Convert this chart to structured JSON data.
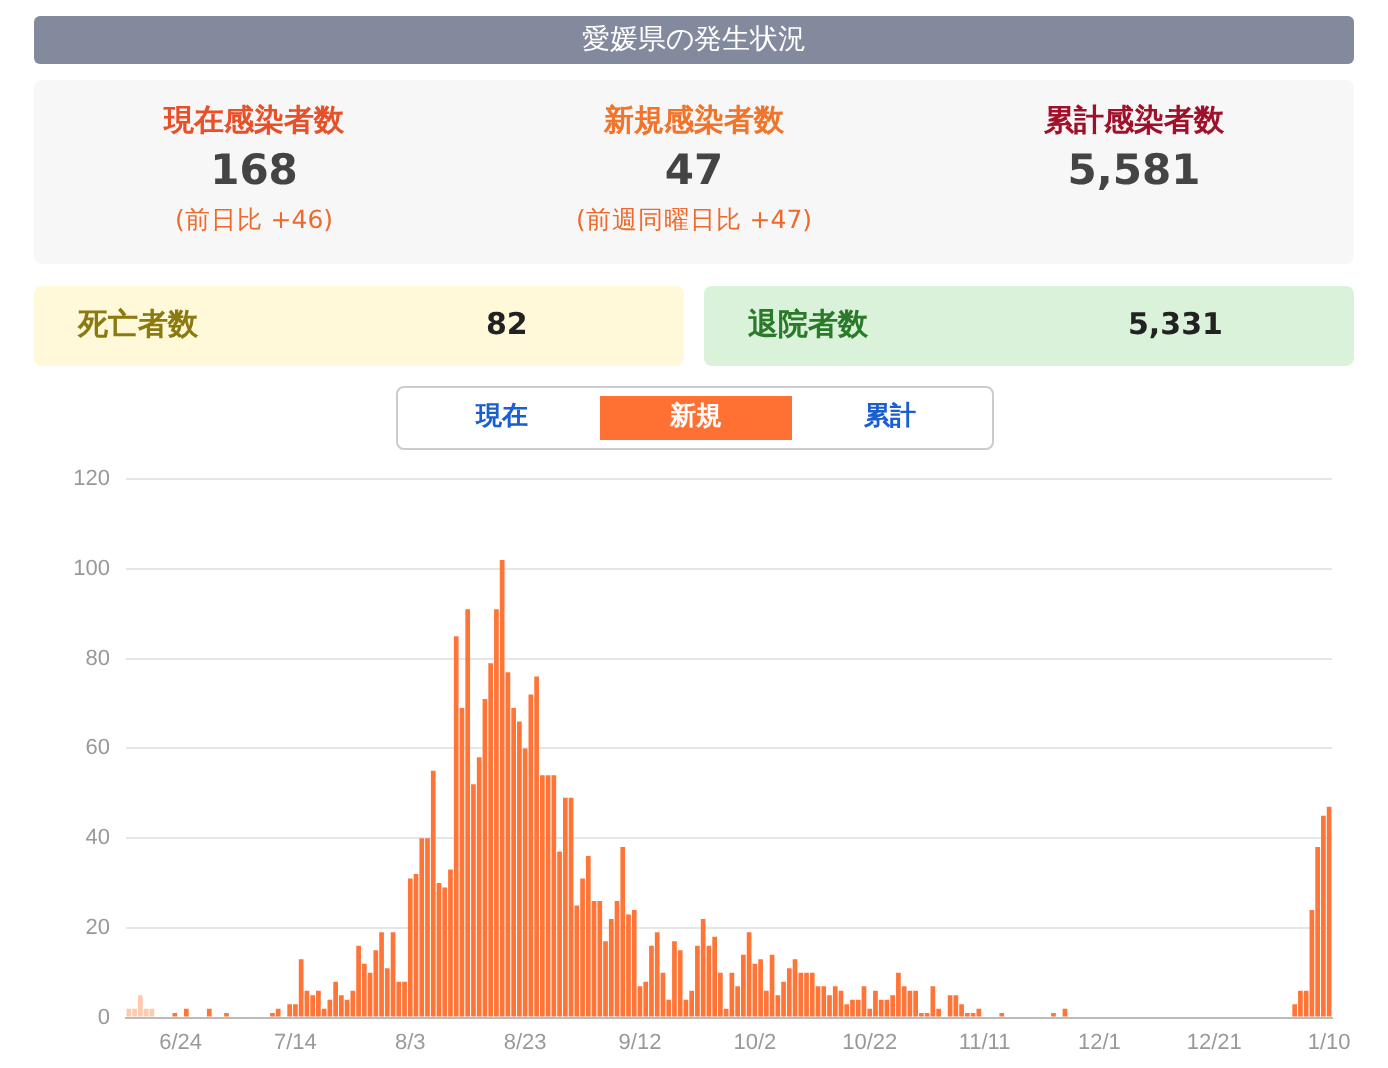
{
  "chart_data": [
    {
      "type": "other",
      "title": "愛媛県の発生状況",
      "annotations": [
        "現在感染者数",
        "168",
        "(前日比 +46)",
        "新規感染者数",
        "47",
        "(前週同曜日比 +47)",
        "累計感染者数",
        "5,581",
        "死亡者数",
        "82",
        "退院者数",
        "5,331",
        "現在",
        "新規",
        "累計"
      ]
    },
    {
      "type": "bar",
      "categories": [
        null,
        null,
        null,
        null,
        null,
        null,
        null,
        null,
        null,
        "6/24",
        null,
        null,
        null,
        null,
        null,
        null,
        null,
        null,
        null,
        null,
        null,
        null,
        null,
        null,
        null,
        null,
        null,
        null,
        null,
        "7/14",
        null,
        null,
        null,
        null,
        null,
        null,
        null,
        null,
        null,
        null,
        null,
        null,
        null,
        null,
        null,
        null,
        null,
        null,
        null,
        "8/3",
        null,
        null,
        null,
        null,
        null,
        null,
        null,
        null,
        null,
        null,
        null,
        null,
        null,
        null,
        null,
        null,
        null,
        null,
        null,
        "8/23",
        null,
        null,
        null,
        null,
        null,
        null,
        null,
        null,
        null,
        null,
        null,
        null,
        null,
        null,
        null,
        null,
        null,
        null,
        null,
        "9/12",
        null,
        null,
        null,
        null,
        null,
        null,
        null,
        null,
        null,
        null,
        null,
        null,
        null,
        null,
        null,
        null,
        null,
        null,
        null,
        "10/2",
        null,
        null,
        null,
        null,
        null,
        null,
        null,
        null,
        null,
        null,
        null,
        null,
        null,
        null,
        null,
        null,
        null,
        null,
        null,
        "10/22",
        null,
        null,
        null,
        null,
        null,
        null,
        null,
        null,
        null,
        null,
        null,
        null,
        null,
        null,
        null,
        null,
        null,
        null,
        null,
        "11/11",
        null,
        null,
        null,
        null,
        null,
        null,
        null,
        null,
        null,
        null,
        null,
        null,
        null,
        null,
        null,
        null,
        null,
        null,
        null,
        "12/1",
        null,
        null,
        null,
        null,
        null,
        null,
        null,
        null,
        null,
        null,
        null,
        null,
        null,
        null,
        null,
        null,
        null,
        null,
        null,
        "12/21",
        null,
        null,
        null,
        null,
        null,
        null,
        null,
        null,
        null,
        null,
        null,
        null,
        null,
        null,
        null,
        null,
        null,
        null,
        null,
        "1/10"
      ],
      "values": [
        2,
        2,
        5,
        2,
        2,
        0,
        0,
        0,
        1,
        0,
        2,
        0,
        0,
        0,
        2,
        0,
        0,
        1,
        0,
        0,
        0,
        0,
        0,
        0,
        0,
        1,
        2,
        0,
        3,
        3,
        13,
        6,
        5,
        6,
        2,
        4,
        8,
        5,
        4,
        6,
        16,
        12,
        10,
        15,
        19,
        11,
        19,
        8,
        8,
        31,
        32,
        40,
        40,
        55,
        30,
        29,
        33,
        85,
        69,
        91,
        52,
        58,
        71,
        79,
        91,
        102,
        77,
        69,
        66,
        60,
        72,
        76,
        54,
        54,
        54,
        37,
        49,
        49,
        25,
        31,
        36,
        26,
        26,
        17,
        22,
        26,
        38,
        23,
        24,
        7,
        8,
        16,
        19,
        10,
        4,
        17,
        15,
        4,
        6,
        16,
        22,
        16,
        18,
        10,
        2,
        10,
        7,
        14,
        19,
        12,
        13,
        6,
        14,
        5,
        8,
        11,
        13,
        10,
        10,
        10,
        7,
        7,
        5,
        7,
        6,
        3,
        4,
        4,
        7,
        2,
        6,
        4,
        4,
        5,
        10,
        7,
        6,
        6,
        1,
        1,
        7,
        2,
        0,
        5,
        5,
        3,
        1,
        1,
        2,
        0,
        0,
        0,
        1,
        0,
        0,
        0,
        0,
        0,
        0,
        0,
        0,
        1,
        0,
        2,
        0,
        0,
        0,
        0,
        0,
        0,
        0,
        0,
        0,
        0,
        0,
        0,
        0,
        0,
        0,
        0,
        0,
        0,
        0,
        0,
        0,
        0,
        0,
        0,
        0,
        0,
        0,
        0,
        0,
        0,
        0,
        0,
        0,
        0,
        0,
        0,
        0,
        0,
        0,
        3,
        6,
        6,
        24,
        38,
        45,
        47
      ],
      "colors": [
        "#ffc9ad",
        "#ffc9ad",
        "#ffc9ad",
        "#ffc9ad",
        "#ffc9ad",
        "#ff7537",
        "#ff7537",
        "#ff7537",
        "#ff7537",
        "#ff7537",
        "#ff7537",
        "#ff7537",
        "#ff7537",
        "#ff7537",
        "#ff7537",
        "#ff7537",
        "#ff7537",
        "#ff7537",
        "#ff7537",
        "#ff7537",
        "#ff7537",
        "#ff7537",
        "#ff7537",
        "#ff7537",
        "#ff7537",
        "#ff7537",
        "#ff7537",
        "#ff7537",
        "#ff7537",
        "#ff7537",
        "#ff7537",
        "#ff7537",
        "#ff7537",
        "#ff7537",
        "#ff7537",
        "#ff7537",
        "#ff7537",
        "#ff7537",
        "#ff7537",
        "#ff7537",
        "#ff7537",
        "#ff7537",
        "#ff7537",
        "#ff7537",
        "#ff7537",
        "#ff7537",
        "#ff7537",
        "#ff7537",
        "#ff7537",
        "#ff7537",
        "#ff7537",
        "#ff7537",
        "#ff7537",
        "#ff7537",
        "#ff7537",
        "#ff7537",
        "#ff7537",
        "#ff7537",
        "#ff7537",
        "#ff7537",
        "#ff7537",
        "#ff7537",
        "#ff7537",
        "#ff7537",
        "#ff7537",
        "#ff7537",
        "#ff7537",
        "#ff7537",
        "#ff7537",
        "#ff7537",
        "#ff7537",
        "#ff7537",
        "#ff7537",
        "#ff7537",
        "#ff7537",
        "#ff7537",
        "#ff7537",
        "#ff7537",
        "#ff7537",
        "#ff7537",
        "#ff7537",
        "#ff7537",
        "#ff7537",
        "#ff7537",
        "#ff7537",
        "#ff7537",
        "#ff7537",
        "#ff7537",
        "#ff7537",
        "#ff7537",
        "#ff7537",
        "#ff7537",
        "#ff7537",
        "#ff7537",
        "#ff7537",
        "#ff7537",
        "#ff7537",
        "#ff7537",
        "#ff7537",
        "#ff7537",
        "#ff7537",
        "#ff7537",
        "#ff7537",
        "#ff7537",
        "#ff7537",
        "#ff7537",
        "#ff7537",
        "#ff7537",
        "#ff7537",
        "#ff7537",
        "#ff7537",
        "#ff7537",
        "#ff7537",
        "#ff7537",
        "#ff7537",
        "#ff7537",
        "#ff7537",
        "#ff7537",
        "#ff7537",
        "#ff7537",
        "#ff7537",
        "#ff7537",
        "#ff7537",
        "#ff7537",
        "#ff7537",
        "#ff7537",
        "#ff7537",
        "#ff7537",
        "#ff7537",
        "#ff7537",
        "#ff7537",
        "#ff7537",
        "#ff7537",
        "#ff7537",
        "#ff7537",
        "#ff7537",
        "#ff7537",
        "#ff7537",
        "#ff7537",
        "#ff7537",
        "#ff7537",
        "#ff7537",
        "#ff7537",
        "#ff7537",
        "#ff7537",
        "#ff7537",
        "#ff7537",
        "#ff7537",
        "#ff7537",
        "#ff7537",
        "#ff7537",
        "#ff7537",
        "#ff7537",
        "#ff7537",
        "#ff7537",
        "#ff7537",
        "#ff7537",
        "#ff7537",
        "#ff7537",
        "#ff7537",
        "#ff7537",
        "#ff7537",
        "#ff7537",
        "#ff7537",
        "#ff7537",
        "#ff7537",
        "#ff7537",
        "#ff7537",
        "#ff7537",
        "#ff7537",
        "#ff7537",
        "#ff7537",
        "#ff7537",
        "#ff7537",
        "#ff7537",
        "#ff7537",
        "#ff7537",
        "#ff7537",
        "#ff7537",
        "#ff7537",
        "#ff7537",
        "#ff7537",
        "#ff7537",
        "#ff7537",
        "#ff7537",
        "#ff7537",
        "#ff7537",
        "#ff7537",
        "#ff7537",
        "#ff7537",
        "#ff7537",
        "#ff7537",
        "#ff7537",
        "#ff7537",
        "#ff7537",
        "#ff7537",
        "#ff7537",
        "#ff7537",
        "#ff7537",
        "#ff7537",
        "#ff7537",
        "#ff7537",
        "#ff7537",
        "#ff7537",
        "#ff7537",
        "#ff7537",
        "#ff7537",
        "#ff7537",
        "#ff7537",
        "#ff7537"
      ],
      "ylim": [
        0,
        120
      ],
      "yticks": [
        0,
        20,
        40,
        60,
        80,
        100,
        120
      ],
      "grid": "y",
      "legend": false
    }
  ]
}
